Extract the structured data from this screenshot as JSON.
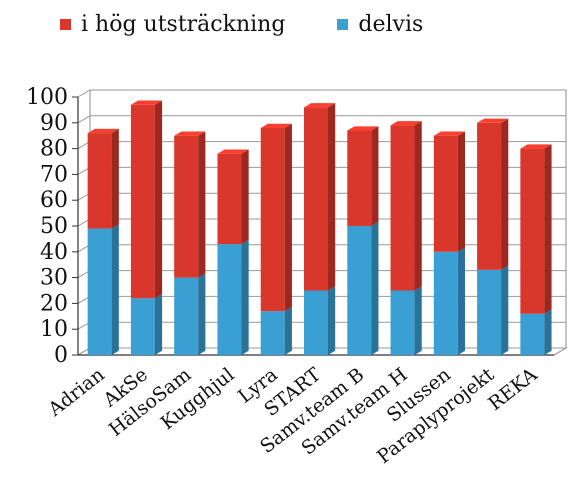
{
  "chart_data": {
    "type": "bar",
    "stacked": true,
    "categories": [
      "Adrian",
      "AkSe",
      "HälsoSam",
      "Kugghjul",
      "Lyra",
      "START",
      "Samv.team B",
      "Samv.team H",
      "Slussen",
      "Paraplyprojekt",
      "REKA"
    ],
    "series": [
      {
        "name": "delvis",
        "color": "#3a9fd3",
        "values": [
          49,
          22,
          30,
          43,
          17,
          25,
          50,
          25,
          40,
          33,
          16
        ]
      },
      {
        "name": "i hög utsträckning",
        "color": "#d9372b",
        "values": [
          37,
          75,
          55,
          35,
          71,
          71,
          37,
          64,
          45,
          57,
          64
        ]
      }
    ],
    "legend": [
      "i hög utsträckning",
      "delvis"
    ],
    "legend_position": "top",
    "ylim": [
      0,
      100
    ],
    "yticks": [
      "0",
      "10",
      "20",
      "30",
      "40",
      "50",
      "60",
      "70",
      "80",
      "90",
      "100"
    ],
    "grid": true,
    "style": "3d"
  }
}
